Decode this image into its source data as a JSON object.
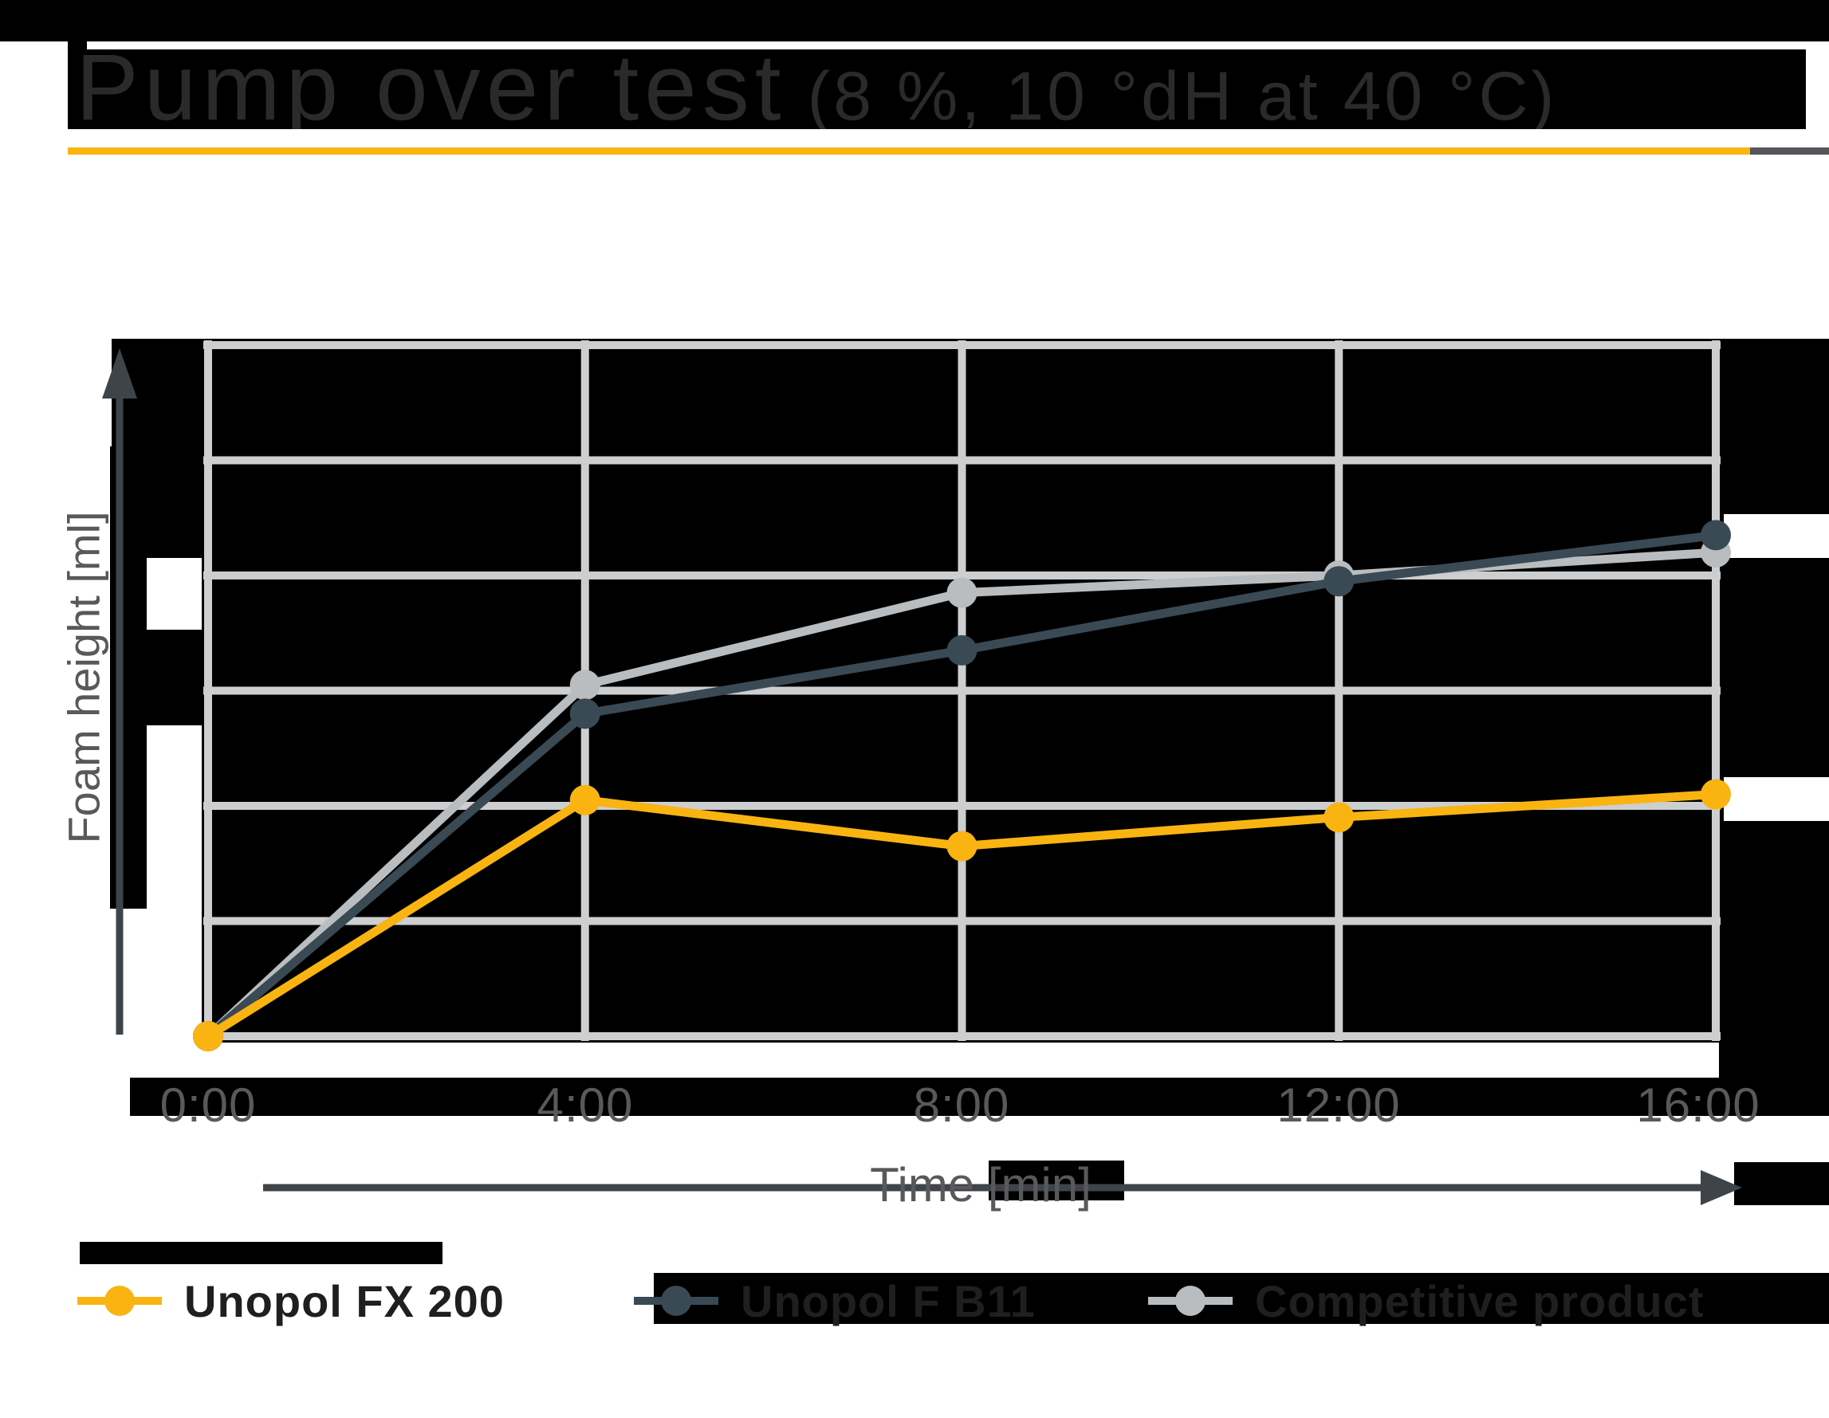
{
  "title": {
    "main": "Pump over test",
    "note": "(8 %, 10 °dH at 40 °C)"
  },
  "colors": {
    "accent_yellow": "#F9B412",
    "dark_slate": "#3A4A54",
    "light_gray": "#B9BDC0",
    "grid": "#CDCED0",
    "panel_black": "#000000",
    "tick_text": "#59595b",
    "title_text": "#2a2a2d",
    "legend_text": "#1f1f22",
    "axis_arrow": "#3F4449"
  },
  "chart_data": {
    "type": "line",
    "title": "Pump over test (8 %, 10 °dH at 40 °C)",
    "xlabel": "Time [min]",
    "ylabel": "Foam height [ml]",
    "categories": [
      "0:00",
      "4:00",
      "8:00",
      "12:00",
      "16:00"
    ],
    "ylim": [
      0,
      6
    ],
    "grid": true,
    "legend_position": "bottom",
    "series": [
      {
        "name": "Unopol FX 200",
        "color": "#F9B412",
        "values": [
          0,
          2.05,
          1.65,
          1.9,
          2.1
        ]
      },
      {
        "name": "Unopol F B11",
        "color": "#3A4A54",
        "values": [
          0,
          2.8,
          3.35,
          3.95,
          4.35
        ]
      },
      {
        "name": "Competitive product",
        "color": "#B9BDC0",
        "values": [
          0,
          3.05,
          3.85,
          4.0,
          4.2
        ]
      }
    ]
  }
}
